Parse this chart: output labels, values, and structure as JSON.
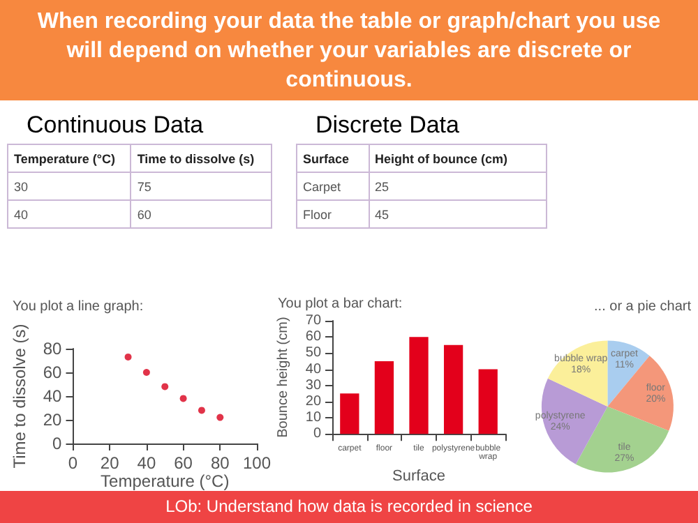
{
  "chart_data": [
    {
      "type": "other",
      "title": "When recording your data the table or graph/chart you use will depend on whether your variables are discrete or continuous.",
      "annotations": [
        "LOb: Understand how data is recorded in science"
      ]
    },
    {
      "type": "other",
      "title": "Continuous Data",
      "annotations": [
        "Temperature (°C)",
        "Time to dissolve (s)",
        "30",
        "75",
        "40",
        "60"
      ]
    },
    {
      "type": "other",
      "title": "Discrete Data",
      "annotations": [
        "Surface",
        "Height of bounce (cm)",
        "Carpet",
        "25",
        "Floor",
        "45"
      ]
    },
    {
      "type": "scatter",
      "title": "You plot a line graph:",
      "xlabel": "Temperature (°C)",
      "ylabel": "Time to dissolve (s)",
      "x": [
        30,
        40,
        50,
        60,
        70,
        80
      ],
      "values": [
        73,
        60,
        48,
        38,
        28,
        22
      ],
      "color": "#d9001b",
      "marker": "circle",
      "xlim": [
        0,
        100
      ],
      "xticks": [
        0,
        20,
        40,
        60,
        80,
        100
      ],
      "ylim": [
        0,
        80
      ],
      "yticks": [
        0,
        20,
        40,
        60,
        80
      ],
      "grid": false
    },
    {
      "type": "bar",
      "title": "You plot a bar chart:",
      "xlabel": "Surface",
      "ylabel": "Bounce height (cm)",
      "categories": [
        "carpet",
        "floor",
        "tile",
        "polystyrene",
        "bubble wrap"
      ],
      "values": [
        25,
        45,
        60,
        55,
        40
      ],
      "color": "#e3001b",
      "ylim": [
        0,
        70
      ],
      "yticks": [
        0,
        10,
        20,
        30,
        40,
        50,
        60,
        70
      ],
      "grid": false
    },
    {
      "type": "pie",
      "title": "... or a pie chart",
      "categories": [
        "carpet",
        "floor",
        "tile",
        "polystyrene",
        "bubble wrap"
      ],
      "values": [
        11,
        20,
        27,
        24,
        18
      ],
      "colors": [
        "#a9cdef",
        "#f4977a",
        "#a3d18f",
        "#b89bd6",
        "#fbef9a"
      ],
      "value_labels": [
        "11%",
        "20%",
        "27%",
        "24%",
        "18%"
      ]
    }
  ]
}
